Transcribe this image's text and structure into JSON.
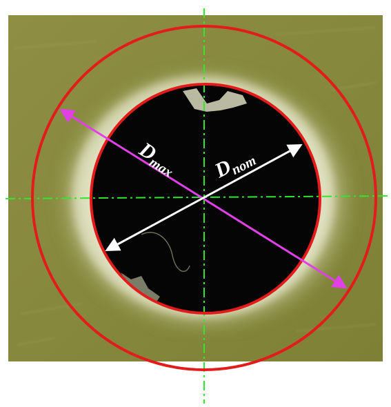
{
  "labels": {
    "dmax_main": "D",
    "dmax_sub": "max",
    "dnom_main": "D",
    "dnom_sub": "nom"
  },
  "colors": {
    "background": "#ffffff",
    "laminate": "#8a8a3c",
    "hole": "#050505",
    "damage_halo": "#e6e8c8",
    "circles": "#e21b1b",
    "centerlines": "#2ee82e",
    "dmax_arrow": "#e040e6",
    "dnom_arrow": "#ffffff",
    "label_text": "#ffffff"
  }
}
